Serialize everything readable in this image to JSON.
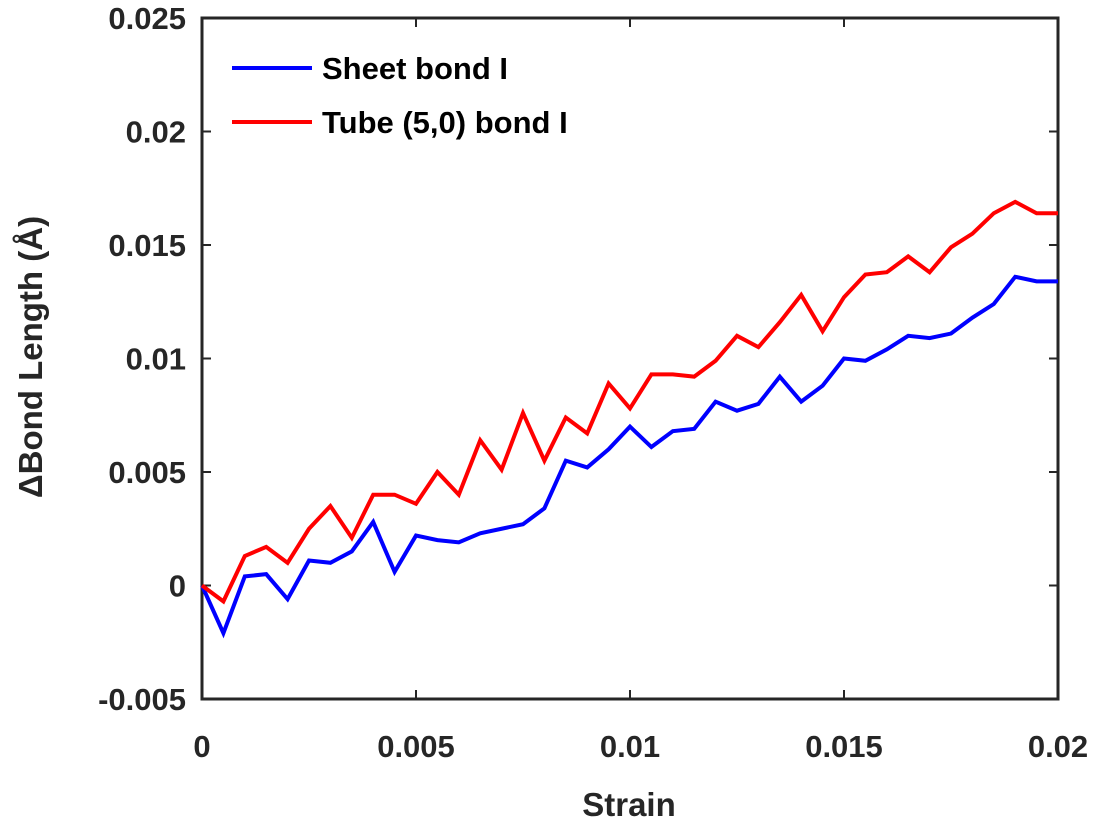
{
  "chart_data": {
    "type": "line",
    "title": "",
    "xlabel": "Strain",
    "ylabel": "ΔBond Length (Å)",
    "xlim": [
      0,
      0.02
    ],
    "ylim": [
      -0.005,
      0.025
    ],
    "xticks": [
      0,
      0.005,
      0.01,
      0.015,
      0.02
    ],
    "xtick_labels": [
      "0",
      "0.005",
      "0.01",
      "0.015",
      "0.02"
    ],
    "yticks": [
      -0.005,
      0,
      0.005,
      0.01,
      0.015,
      0.02,
      0.025
    ],
    "ytick_labels": [
      "-0.005",
      "0",
      "0.005",
      "0.01",
      "0.015",
      "0.02",
      "0.025"
    ],
    "grid": false,
    "legend_position": "top-left",
    "x": [
      0,
      0.0005,
      0.001,
      0.0015,
      0.002,
      0.0025,
      0.003,
      0.0035,
      0.004,
      0.0045,
      0.005,
      0.0055,
      0.006,
      0.0065,
      0.007,
      0.0075,
      0.008,
      0.0085,
      0.009,
      0.0095,
      0.01,
      0.0105,
      0.011,
      0.0115,
      0.012,
      0.0125,
      0.013,
      0.0135,
      0.014,
      0.0145,
      0.015,
      0.0155,
      0.016,
      0.0165,
      0.017,
      0.0175,
      0.018,
      0.0185,
      0.019,
      0.0195,
      0.02
    ],
    "series": [
      {
        "name": "Sheet bond I",
        "color": "#0000ff",
        "values": [
          0,
          -0.0021,
          0.0004,
          0.0005,
          -0.0006,
          0.0011,
          0.001,
          0.0015,
          0.0028,
          0.0006,
          0.0022,
          0.002,
          0.0019,
          0.0023,
          0.0025,
          0.0027,
          0.0034,
          0.0055,
          0.0052,
          0.006,
          0.007,
          0.0061,
          0.0068,
          0.0069,
          0.0081,
          0.0077,
          0.008,
          0.0092,
          0.0081,
          0.0088,
          0.01,
          0.0099,
          0.0104,
          0.011,
          0.0109,
          0.0111,
          0.0118,
          0.0124,
          0.0136,
          0.0134,
          0.0134
        ]
      },
      {
        "name": "Tube (5,0) bond I",
        "color": "#ff0000",
        "values": [
          0,
          -0.0007,
          0.0013,
          0.0017,
          0.001,
          0.0025,
          0.0035,
          0.0021,
          0.004,
          0.004,
          0.0036,
          0.005,
          0.004,
          0.0064,
          0.0051,
          0.0076,
          0.0055,
          0.0074,
          0.0067,
          0.0089,
          0.0078,
          0.0093,
          0.0093,
          0.0092,
          0.0099,
          0.011,
          0.0105,
          0.0116,
          0.0128,
          0.0112,
          0.0127,
          0.0137,
          0.0138,
          0.0145,
          0.0138,
          0.0149,
          0.0155,
          0.0164,
          0.0169,
          0.0164,
          0.0164
        ]
      }
    ]
  }
}
